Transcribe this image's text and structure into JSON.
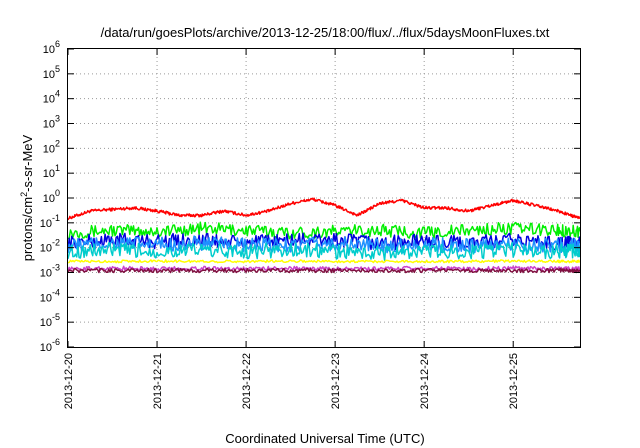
{
  "chart_data": {
    "type": "line",
    "title": "/data/run/goesPlots/archive/2013-12-25/18:00/flux/../flux/5daysMoonFluxes.txt",
    "xlabel": "Coordinated Universal Time (UTC)",
    "ylabel_parts": {
      "pre": "protons/cm",
      "sup": "2",
      "post": "-s-sr-MeV"
    },
    "yscale": "log",
    "ylim": [
      1e-06,
      1000000.0
    ],
    "y_ticks": [
      {
        "base": "10",
        "exp": "-6"
      },
      {
        "base": "10",
        "exp": "-5"
      },
      {
        "base": "10",
        "exp": "-4"
      },
      {
        "base": "10",
        "exp": "-3"
      },
      {
        "base": "10",
        "exp": "-2"
      },
      {
        "base": "10",
        "exp": "-1"
      },
      {
        "base": "10",
        "exp": "0"
      },
      {
        "base": "10",
        "exp": "1"
      },
      {
        "base": "10",
        "exp": "2"
      },
      {
        "base": "10",
        "exp": "3"
      },
      {
        "base": "10",
        "exp": "4"
      },
      {
        "base": "10",
        "exp": "5"
      },
      {
        "base": "10",
        "exp": "6"
      }
    ],
    "xlim": [
      "2013-12-20",
      "2013-12-25 18:00"
    ],
    "x_ticks": [
      "2013-12-20",
      "2013-12-21",
      "2013-12-22",
      "2013-12-23",
      "2013-12-24",
      "2013-12-25"
    ],
    "grid": true,
    "series": [
      {
        "color": "#ff0000",
        "x": [
          "2013-12-20 00:00",
          "2013-12-20 06:00",
          "2013-12-20 12:00",
          "2013-12-20 18:00",
          "2013-12-21 00:00",
          "2013-12-21 06:00",
          "2013-12-21 12:00",
          "2013-12-21 18:00",
          "2013-12-22 00:00",
          "2013-12-22 06:00",
          "2013-12-22 12:00",
          "2013-12-22 18:00",
          "2013-12-23 00:00",
          "2013-12-23 06:00",
          "2013-12-23 12:00",
          "2013-12-23 18:00",
          "2013-12-24 00:00",
          "2013-12-24 06:00",
          "2013-12-24 12:00",
          "2013-12-24 18:00",
          "2013-12-25 00:00",
          "2013-12-25 06:00",
          "2013-12-25 12:00",
          "2013-12-25 18:00"
        ],
        "values": [
          0.15,
          0.3,
          0.35,
          0.4,
          0.3,
          0.2,
          0.2,
          0.3,
          0.2,
          0.3,
          0.6,
          0.9,
          0.5,
          0.2,
          0.6,
          0.8,
          0.4,
          0.4,
          0.3,
          0.5,
          0.8,
          0.5,
          0.3,
          0.15
        ]
      },
      {
        "color": "#00ee00",
        "x": [
          "2013-12-20 00:00",
          "2013-12-20 12:00",
          "2013-12-21 00:00",
          "2013-12-21 12:00",
          "2013-12-22 00:00",
          "2013-12-22 12:00",
          "2013-12-23 00:00",
          "2013-12-23 12:00",
          "2013-12-24 00:00",
          "2013-12-24 12:00",
          "2013-12-25 00:00",
          "2013-12-25 12:00",
          "2013-12-25 18:00"
        ],
        "values": [
          0.04,
          0.05,
          0.045,
          0.06,
          0.05,
          0.04,
          0.045,
          0.05,
          0.04,
          0.05,
          0.06,
          0.05,
          0.045
        ]
      },
      {
        "color": "#0000dd",
        "x": [
          "2013-12-20 00:00",
          "2013-12-20 12:00",
          "2013-12-21 00:00",
          "2013-12-21 12:00",
          "2013-12-22 00:00",
          "2013-12-22 12:00",
          "2013-12-23 00:00",
          "2013-12-23 12:00",
          "2013-12-24 00:00",
          "2013-12-24 12:00",
          "2013-12-25 00:00",
          "2013-12-25 12:00",
          "2013-12-25 18:00"
        ],
        "values": [
          0.015,
          0.02,
          0.018,
          0.02,
          0.015,
          0.02,
          0.02,
          0.015,
          0.018,
          0.015,
          0.02,
          0.015,
          0.015
        ]
      },
      {
        "color": "#1e90ff",
        "x": [
          "2013-12-20 00:00",
          "2013-12-20 12:00",
          "2013-12-21 00:00",
          "2013-12-21 12:00",
          "2013-12-22 00:00",
          "2013-12-22 12:00",
          "2013-12-23 00:00",
          "2013-12-23 12:00",
          "2013-12-24 00:00",
          "2013-12-24 12:00",
          "2013-12-25 00:00",
          "2013-12-25 12:00",
          "2013-12-25 18:00"
        ],
        "values": [
          0.012,
          0.015,
          0.013,
          0.015,
          0.012,
          0.013,
          0.014,
          0.012,
          0.013,
          0.012,
          0.014,
          0.012,
          0.012
        ]
      },
      {
        "color": "#00cccc",
        "x": [
          "2013-12-20 00:00",
          "2013-12-20 12:00",
          "2013-12-21 00:00",
          "2013-12-21 12:00",
          "2013-12-22 00:00",
          "2013-12-22 12:00",
          "2013-12-23 00:00",
          "2013-12-23 12:00",
          "2013-12-24 00:00",
          "2013-12-24 12:00",
          "2013-12-25 00:00",
          "2013-12-25 12:00",
          "2013-12-25 18:00"
        ],
        "values": [
          0.007,
          0.008,
          0.007,
          0.008,
          0.007,
          0.008,
          0.007,
          0.006,
          0.007,
          0.007,
          0.008,
          0.007,
          0.007
        ]
      },
      {
        "color": "#ffff00",
        "x": [
          "2013-12-20 00:00",
          "2013-12-20 12:00",
          "2013-12-21 00:00",
          "2013-12-21 12:00",
          "2013-12-22 00:00",
          "2013-12-22 12:00",
          "2013-12-23 00:00",
          "2013-12-23 12:00",
          "2013-12-24 00:00",
          "2013-12-24 12:00",
          "2013-12-25 00:00",
          "2013-12-25 12:00",
          "2013-12-25 18:00"
        ],
        "values": [
          0.0028,
          0.0028,
          0.0029,
          0.0028,
          0.0028,
          0.0029,
          0.0028,
          0.0028,
          0.0028,
          0.0028,
          0.0029,
          0.0028,
          0.0028
        ]
      },
      {
        "color": "#cc44cc",
        "x": [
          "2013-12-20 00:00",
          "2013-12-20 12:00",
          "2013-12-21 00:00",
          "2013-12-21 12:00",
          "2013-12-22 00:00",
          "2013-12-22 12:00",
          "2013-12-23 00:00",
          "2013-12-23 12:00",
          "2013-12-24 00:00",
          "2013-12-24 12:00",
          "2013-12-25 00:00",
          "2013-12-25 12:00",
          "2013-12-25 18:00"
        ],
        "values": [
          0.0014,
          0.0015,
          0.0014,
          0.0015,
          0.0014,
          0.0015,
          0.0014,
          0.0014,
          0.0015,
          0.0014,
          0.0015,
          0.0014,
          0.0014
        ]
      },
      {
        "color": "#801040",
        "x": [
          "2013-12-20 00:00",
          "2013-12-20 12:00",
          "2013-12-21 00:00",
          "2013-12-21 12:00",
          "2013-12-22 00:00",
          "2013-12-22 12:00",
          "2013-12-23 00:00",
          "2013-12-23 12:00",
          "2013-12-24 00:00",
          "2013-12-24 12:00",
          "2013-12-25 00:00",
          "2013-12-25 12:00",
          "2013-12-25 18:00"
        ],
        "values": [
          0.0012,
          0.0012,
          0.0012,
          0.0012,
          0.0012,
          0.0012,
          0.0012,
          0.0012,
          0.0012,
          0.0012,
          0.0012,
          0.0012,
          0.0012
        ]
      }
    ]
  }
}
